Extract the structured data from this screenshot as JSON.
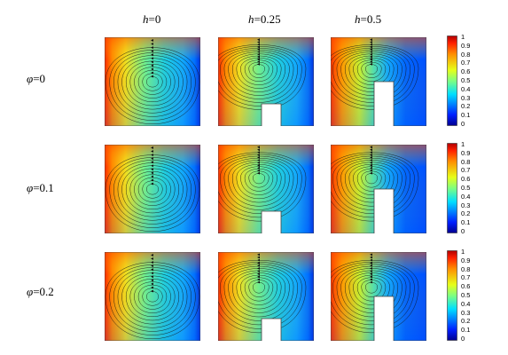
{
  "columns": [
    {
      "sym": "h",
      "val": "=0"
    },
    {
      "sym": "h",
      "val": "=0.25"
    },
    {
      "sym": "h",
      "val": "=0.5"
    }
  ],
  "rows": [
    {
      "sym": "φ",
      "val": "=0"
    },
    {
      "sym": "φ",
      "val": "=0.1"
    },
    {
      "sym": "φ",
      "val": "=0.2"
    }
  ],
  "colorbar": {
    "ticks": [
      "1",
      "0.9",
      "0.8",
      "0.7",
      "0.6",
      "0.5",
      "0.4",
      "0.3",
      "0.2",
      "0.1",
      "0"
    ],
    "colormap": "jet"
  },
  "obstacle_heights": [
    0,
    0.25,
    0.5
  ]
}
